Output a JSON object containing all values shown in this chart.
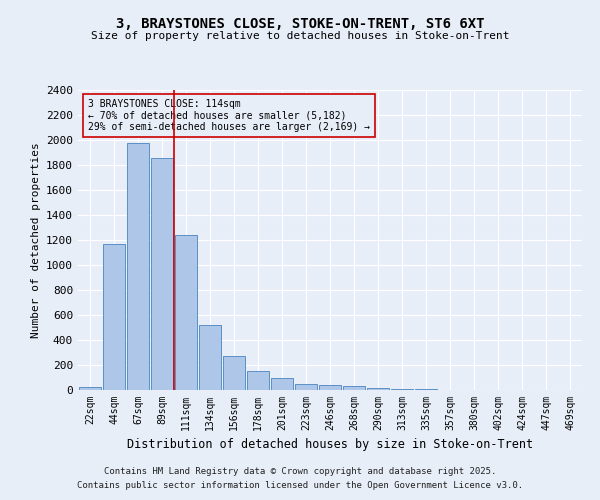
{
  "title_line1": "3, BRAYSTONES CLOSE, STOKE-ON-TRENT, ST6 6XT",
  "title_line2": "Size of property relative to detached houses in Stoke-on-Trent",
  "xlabel": "Distribution of detached houses by size in Stoke-on-Trent",
  "ylabel": "Number of detached properties",
  "categories": [
    "22sqm",
    "44sqm",
    "67sqm",
    "89sqm",
    "111sqm",
    "134sqm",
    "156sqm",
    "178sqm",
    "201sqm",
    "223sqm",
    "246sqm",
    "268sqm",
    "290sqm",
    "313sqm",
    "335sqm",
    "357sqm",
    "380sqm",
    "402sqm",
    "424sqm",
    "447sqm",
    "469sqm"
  ],
  "values": [
    25,
    1170,
    1980,
    1860,
    1240,
    520,
    270,
    155,
    95,
    45,
    40,
    35,
    20,
    8,
    5,
    4,
    3,
    2,
    2,
    1,
    1
  ],
  "bar_color": "#aec6e8",
  "bar_edge_color": "#5b8fc7",
  "background_color": "#e8eef8",
  "grid_color": "#ffffff",
  "annotation_text": "3 BRAYSTONES CLOSE: 114sqm\n← 70% of detached houses are smaller (5,182)\n29% of semi-detached houses are larger (2,169) →",
  "annotation_box_edge": "#cc0000",
  "vline_x_index": 4,
  "vline_color": "#cc0000",
  "ylim": [
    0,
    2400
  ],
  "yticks": [
    0,
    200,
    400,
    600,
    800,
    1000,
    1200,
    1400,
    1600,
    1800,
    2000,
    2200,
    2400
  ],
  "footnote_line1": "Contains HM Land Registry data © Crown copyright and database right 2025.",
  "footnote_line2": "Contains public sector information licensed under the Open Government Licence v3.0."
}
